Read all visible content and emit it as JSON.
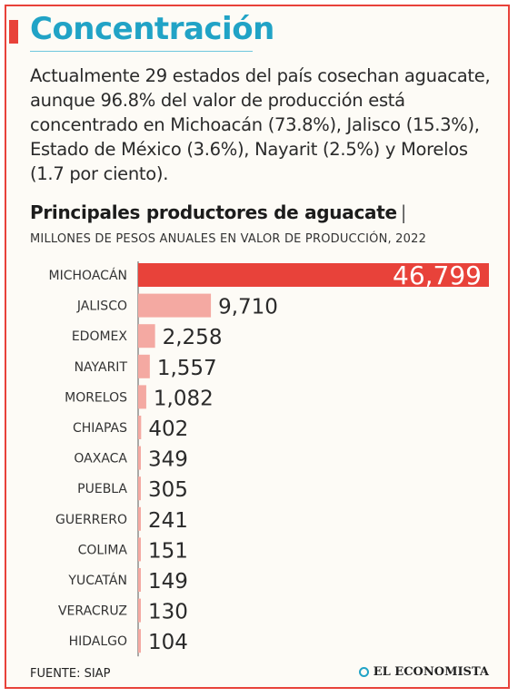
{
  "header": {
    "title": "Concentración",
    "intro": "Actualmente 29 estados del país cosechan aguacate, aunque 96.8% del valor de producción está concentrado en Michoacán (73.8%), Jalisco (15.3%), Estado de México (3.6%), Nayarit (2.5%) y Morelos (1.7 por ciento)."
  },
  "chart_data": {
    "type": "bar",
    "orientation": "horizontal",
    "title": "Principales productores de aguacate",
    "subtitle": "MILLONES DE PESOS ANUALES EN VALOR DE PRODUCCIÓN, 2022",
    "categories": [
      "MICHOACÁN",
      "JALISCO",
      "EDOMEX",
      "NAYARIT",
      "MORELOS",
      "CHIAPAS",
      "OAXACA",
      "PUEBLA",
      "GUERRERO",
      "COLIMA",
      "YUCATÁN",
      "VERACRUZ",
      "HIDALGO"
    ],
    "values": [
      46799,
      9710,
      2258,
      1557,
      1082,
      402,
      349,
      305,
      241,
      151,
      149,
      130,
      104
    ],
    "value_labels": [
      "46,799",
      "9,710",
      "2,258",
      "1,557",
      "1,082",
      "402",
      "349",
      "305",
      "241",
      "151",
      "149",
      "130",
      "104"
    ],
    "highlight_index": 0,
    "colors": {
      "highlight": "#e8423a",
      "bar": "#f4a9a2",
      "axis": "#555555"
    }
  },
  "footer": {
    "source": "FUENTE: SIAP",
    "brand": "EL ECONOMISTA"
  }
}
